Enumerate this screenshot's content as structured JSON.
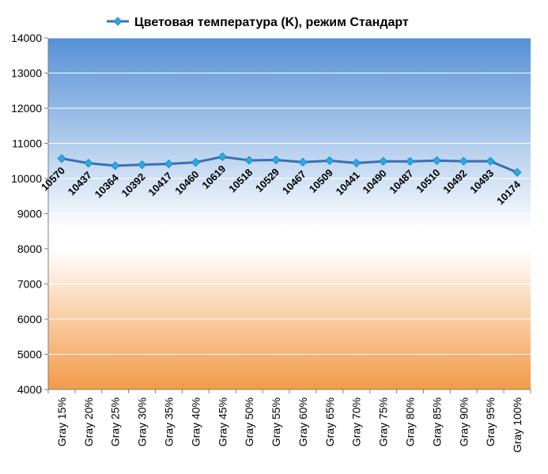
{
  "chart_data": {
    "type": "line",
    "title": "Цветовая температура (K), режим Стандарт",
    "xlabel": "",
    "ylabel": "",
    "categories": [
      "Gray 15%",
      "Gray 20%",
      "Gray 25%",
      "Gray 30%",
      "Gray 35%",
      "Gray 40%",
      "Gray 45%",
      "Gray 50%",
      "Gray 55%",
      "Gray 60%",
      "Gray 65%",
      "Gray 70%",
      "Gray 75%",
      "Gray 80%",
      "Gray 85%",
      "Gray 90%",
      "Gray 95%",
      "Gray 100%"
    ],
    "series": [
      {
        "name": "Цветовая температура (K), режим Стандарт",
        "values": [
          10570,
          10437,
          10364,
          10392,
          10417,
          10460,
          10619,
          10518,
          10529,
          10467,
          10509,
          10441,
          10490,
          10487,
          10510,
          10492,
          10493,
          10174
        ],
        "color": "#3a6fb0",
        "marker_color": "#29a9e6"
      }
    ],
    "ylim": [
      4000,
      14000
    ],
    "yticks": [
      4000,
      5000,
      6000,
      7000,
      8000,
      9000,
      10000,
      11000,
      12000,
      13000,
      14000
    ],
    "grid": true,
    "legend_position": "top",
    "background": {
      "top": "#5590d6",
      "middle": "#ffffff",
      "bottom": "#f39a46"
    }
  }
}
